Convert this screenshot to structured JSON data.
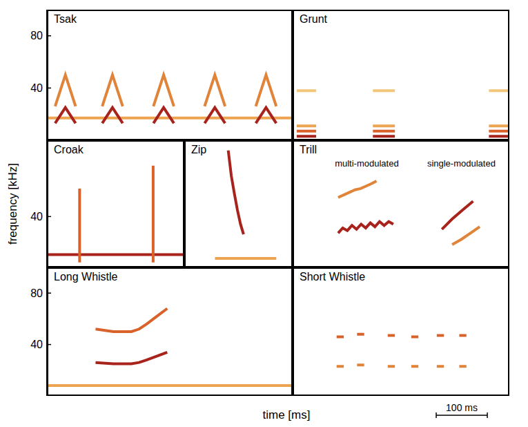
{
  "chart_data": [
    {
      "type": "line",
      "title": "Tsak",
      "xlim": [
        0,
        480
      ],
      "ylim": [
        0,
        100
      ],
      "yticks": [
        40,
        80
      ],
      "tick_labels": "y",
      "series": [
        {
          "color": "#eca451",
          "x": [
            0,
            480
          ],
          "values": [
            17,
            17
          ]
        },
        {
          "color": "#a8231c",
          "x": [
            16,
            36,
            56,
            60,
            108,
            128,
            148,
            152,
            208,
            228,
            248,
            252,
            308,
            328,
            348,
            352,
            408,
            428,
            448
          ],
          "values": [
            13,
            25,
            13,
            null,
            13,
            25,
            13,
            null,
            13,
            25,
            13,
            null,
            13,
            25,
            13,
            null,
            13,
            25,
            13
          ]
        },
        {
          "color": "#e0843a",
          "x": [
            16,
            36,
            56,
            60,
            108,
            128,
            148,
            152,
            208,
            228,
            248,
            252,
            308,
            328,
            348,
            352,
            408,
            428,
            448
          ],
          "values": [
            26,
            50,
            26,
            null,
            26,
            50,
            26,
            null,
            26,
            50,
            26,
            null,
            26,
            50,
            26,
            null,
            26,
            50,
            26
          ]
        }
      ]
    },
    {
      "type": "line",
      "title": "Grunt",
      "xlim": [
        0,
        424
      ],
      "ylim": [
        0,
        100
      ],
      "yticks": [
        40,
        80
      ],
      "tick_labels": false,
      "series": [
        {
          "color": "#a8231c",
          "x": [
            8,
            46,
            50,
            157,
            200,
            204,
            384,
            424
          ],
          "values": [
            3,
            3,
            null,
            3,
            3,
            null,
            3,
            3
          ]
        },
        {
          "color": "#d9622b",
          "x": [
            8,
            46,
            50,
            157,
            200,
            204,
            384,
            424
          ],
          "values": [
            7,
            7,
            null,
            7,
            7,
            null,
            7,
            7
          ]
        },
        {
          "color": "#eca451",
          "x": [
            8,
            46,
            50,
            157,
            200,
            204,
            384,
            424
          ],
          "values": [
            11,
            11,
            null,
            11,
            11,
            null,
            11,
            11
          ]
        },
        {
          "color": "#f3c77a",
          "x": [
            8,
            46,
            50,
            157,
            200,
            204,
            384,
            424
          ],
          "values": [
            38,
            38,
            null,
            38,
            38,
            null,
            38,
            38
          ]
        }
      ]
    },
    {
      "type": "line",
      "title": "Croak",
      "xlim": [
        0,
        269
      ],
      "ylim": [
        0,
        100
      ],
      "yticks": [
        40
      ],
      "tick_labels": "y",
      "series": [
        {
          "color": "#a8231c",
          "x": [
            0,
            269
          ],
          "values": [
            10,
            10
          ]
        },
        {
          "color": "#d9622b",
          "x": [
            64,
            64,
            66,
            208,
            208
          ],
          "values": [
            4,
            62,
            null,
            4,
            80
          ]
        }
      ]
    },
    {
      "type": "line",
      "title": "Zip",
      "xlim": [
        0,
        212
      ],
      "ylim": [
        0,
        100
      ],
      "yticks": [
        40,
        80
      ],
      "tick_labels": false,
      "series": [
        {
          "color": "#eca451",
          "x": [
            60,
            180
          ],
          "values": [
            7,
            7
          ]
        },
        {
          "color": "#a8231c",
          "x": [
            86,
            92,
            98,
            104,
            110,
            116
          ],
          "values": [
            92,
            72,
            58,
            45,
            34,
            26
          ]
        }
      ]
    },
    {
      "type": "line",
      "title": "Trill",
      "xlim": [
        0,
        424
      ],
      "ylim": [
        0,
        100
      ],
      "yticks": [
        40,
        80
      ],
      "tick_labels": false,
      "annotations": [
        {
          "text": "multi-modulated",
          "x": 145,
          "y": 82
        },
        {
          "text": "single-modulated",
          "x": 330,
          "y": 82
        }
      ],
      "series": [
        {
          "color": "#a8231c",
          "x": [
            89,
            98,
            107,
            116,
            125,
            134,
            143,
            152,
            161,
            170,
            179,
            188,
            197,
            201,
            292,
            312,
            332,
            353
          ],
          "values": [
            27,
            31,
            29,
            33,
            30,
            34,
            31,
            35,
            32,
            36,
            33,
            36,
            34,
            null,
            30,
            38,
            45,
            52
          ]
        },
        {
          "color": "#e0843a",
          "x": [
            89,
            100,
            111,
            122,
            133,
            144,
            155,
            164,
            170,
            312,
            330,
            348,
            366
          ],
          "values": [
            55,
            57,
            59,
            61,
            62,
            64,
            66,
            68,
            null,
            18,
            22,
            27,
            32
          ]
        }
      ]
    },
    {
      "type": "line",
      "title": "Long Whistle",
      "xlim": [
        0,
        480
      ],
      "ylim": [
        0,
        100
      ],
      "yticks": [
        40,
        80
      ],
      "xticks": [
        100,
        200,
        300,
        400
      ],
      "tick_labels": "y",
      "series": [
        {
          "color": "#eca451",
          "x": [
            0,
            480
          ],
          "values": [
            8,
            8
          ]
        },
        {
          "color": "#a8231c",
          "x": [
            95,
            130,
            165,
            180,
            195,
            215,
            235
          ],
          "values": [
            26,
            25,
            25,
            26,
            28,
            31,
            34
          ]
        },
        {
          "color": "#d9622b",
          "x": [
            95,
            130,
            165,
            180,
            195,
            215,
            235
          ],
          "values": [
            52,
            50,
            50,
            52,
            56,
            62,
            68
          ]
        }
      ]
    },
    {
      "type": "line",
      "title": "Short Whistle",
      "xlim": [
        0,
        424
      ],
      "ylim": [
        0,
        100
      ],
      "yticks": [
        40,
        80
      ],
      "xticks": [
        100,
        200,
        300,
        400
      ],
      "tick_labels": false,
      "series": [
        {
          "color": "#d9622b",
          "x": [
            86,
            100,
            104,
            126,
            140,
            144,
            186,
            200,
            204,
            232,
            246,
            250,
            282,
            296,
            300,
            326,
            340
          ],
          "values": [
            46,
            46,
            null,
            48,
            48,
            null,
            47,
            47,
            null,
            46,
            46,
            null,
            47,
            47,
            null,
            47,
            47
          ]
        },
        {
          "color": "#e0843a",
          "x": [
            86,
            100,
            104,
            126,
            140,
            144,
            186,
            200,
            204,
            232,
            246,
            250,
            282,
            296,
            300,
            326,
            340
          ],
          "values": [
            23,
            23,
            null,
            24,
            24,
            null,
            23,
            23,
            null,
            23,
            23,
            null,
            23,
            23,
            null,
            23,
            23
          ]
        }
      ]
    }
  ],
  "xlabel": "time [ms]",
  "ylabel": "frequency [kHz]",
  "scale_bar": {
    "value": 100,
    "label": "100 ms"
  }
}
